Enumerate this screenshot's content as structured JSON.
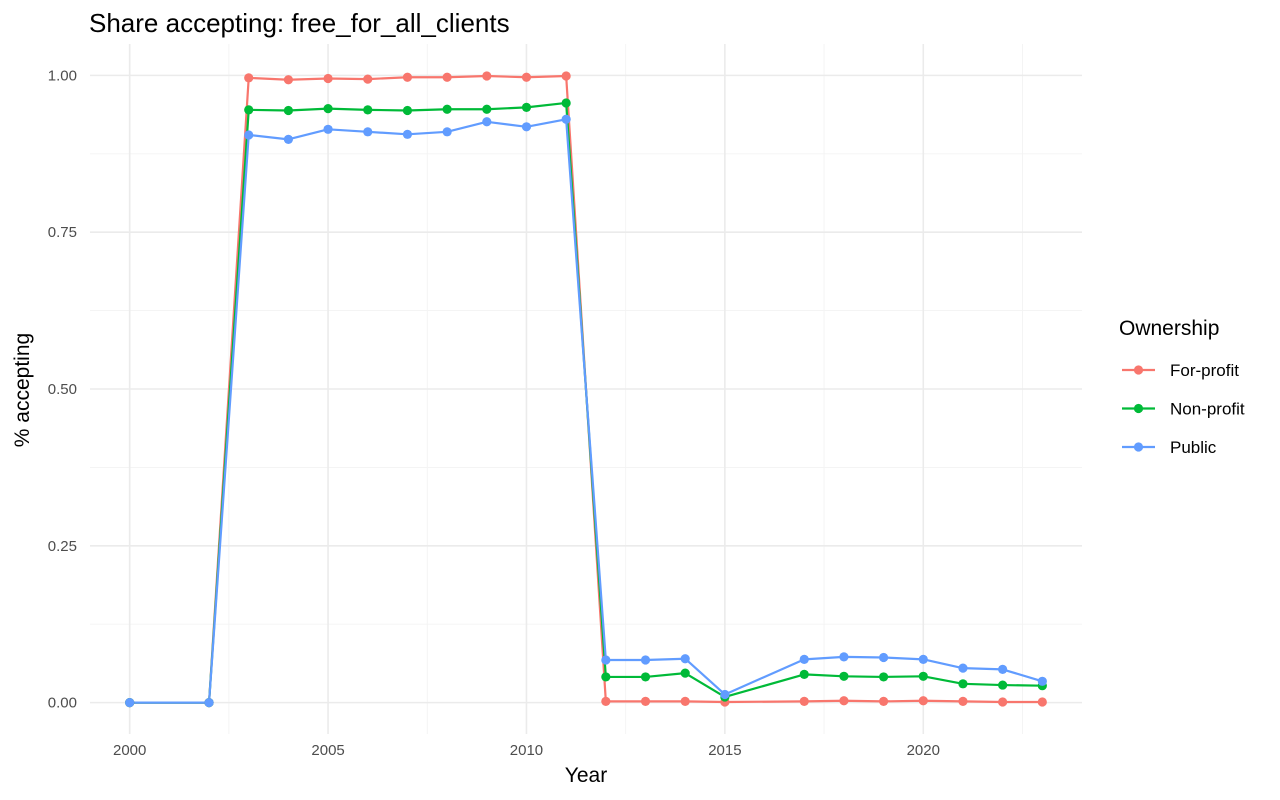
{
  "chart_data": {
    "type": "line",
    "title": "Share accepting: free_for_all_clients",
    "xlabel": "Year",
    "ylabel": "% accepting",
    "xlim": [
      1999.0,
      2024.0
    ],
    "ylim": [
      -0.05,
      1.05
    ],
    "x_ticks": [
      2000,
      2005,
      2010,
      2015,
      2020
    ],
    "y_ticks": [
      0.0,
      0.25,
      0.5,
      0.75,
      1.0
    ],
    "y_tick_labels": [
      "0.00",
      "0.25",
      "0.50",
      "0.75",
      "1.00"
    ],
    "grid": true,
    "legend": {
      "title": "Ownership",
      "position": "right"
    },
    "series": [
      {
        "name": "For-profit",
        "color": "#F8766D",
        "points": [
          [
            2000,
            0.0
          ],
          [
            2002,
            0.0
          ],
          [
            2003,
            0.996
          ],
          [
            2004,
            0.993
          ],
          [
            2005,
            0.995
          ],
          [
            2006,
            0.994
          ],
          [
            2007,
            0.997
          ],
          [
            2008,
            0.997
          ],
          [
            2009,
            0.999
          ],
          [
            2010,
            0.997
          ],
          [
            2011,
            0.999
          ],
          [
            2012,
            0.002
          ],
          [
            2013,
            0.002
          ],
          [
            2014,
            0.002
          ],
          [
            2015,
            0.001
          ],
          [
            2017,
            0.002
          ],
          [
            2018,
            0.003
          ],
          [
            2019,
            0.002
          ],
          [
            2020,
            0.003
          ],
          [
            2021,
            0.002
          ],
          [
            2022,
            0.001
          ],
          [
            2023,
            0.001
          ]
        ]
      },
      {
        "name": "Non-profit",
        "color": "#00BA38",
        "points": [
          [
            2000,
            0.0
          ],
          [
            2002,
            0.0
          ],
          [
            2003,
            0.945
          ],
          [
            2004,
            0.944
          ],
          [
            2005,
            0.947
          ],
          [
            2006,
            0.945
          ],
          [
            2007,
            0.944
          ],
          [
            2008,
            0.946
          ],
          [
            2009,
            0.946
          ],
          [
            2010,
            0.949
          ],
          [
            2011,
            0.956
          ],
          [
            2012,
            0.041
          ],
          [
            2013,
            0.041
          ],
          [
            2014,
            0.047
          ],
          [
            2015,
            0.009
          ],
          [
            2017,
            0.045
          ],
          [
            2018,
            0.042
          ],
          [
            2019,
            0.041
          ],
          [
            2020,
            0.042
          ],
          [
            2021,
            0.03
          ],
          [
            2022,
            0.028
          ],
          [
            2023,
            0.027
          ]
        ]
      },
      {
        "name": "Public",
        "color": "#619CFF",
        "points": [
          [
            2000,
            0.0
          ],
          [
            2002,
            0.0
          ],
          [
            2003,
            0.905
          ],
          [
            2004,
            0.898
          ],
          [
            2005,
            0.914
          ],
          [
            2006,
            0.91
          ],
          [
            2007,
            0.906
          ],
          [
            2008,
            0.91
          ],
          [
            2009,
            0.926
          ],
          [
            2010,
            0.918
          ],
          [
            2011,
            0.93
          ],
          [
            2012,
            0.068
          ],
          [
            2013,
            0.068
          ],
          [
            2014,
            0.07
          ],
          [
            2015,
            0.013
          ],
          [
            2017,
            0.069
          ],
          [
            2018,
            0.073
          ],
          [
            2019,
            0.072
          ],
          [
            2020,
            0.069
          ],
          [
            2021,
            0.055
          ],
          [
            2022,
            0.053
          ],
          [
            2023,
            0.034
          ]
        ]
      }
    ]
  }
}
